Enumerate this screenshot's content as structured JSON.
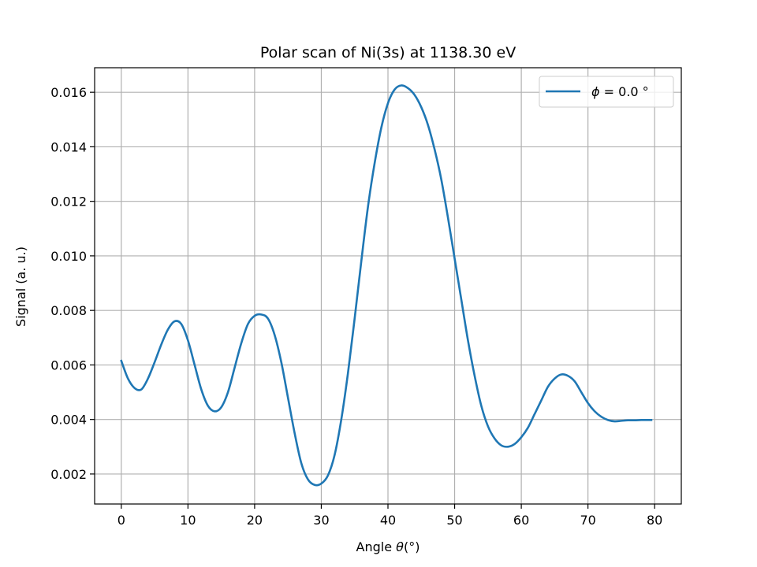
{
  "chart_data": {
    "type": "line",
    "title": "Polar scan of Ni(3s) at 1138.30 eV",
    "xlabel_prefix": "Angle ",
    "xlabel_symbol": "θ",
    "xlabel_suffix": "(°)",
    "ylabel": "Signal (a. u.)",
    "xlim": [
      -4,
      84
    ],
    "ylim": [
      0.0009,
      0.0169
    ],
    "xticks": [
      0,
      10,
      20,
      30,
      40,
      50,
      60,
      70,
      80
    ],
    "yticks": [
      0.002,
      0.004,
      0.006,
      0.008,
      0.01,
      0.012,
      0.014,
      0.016
    ],
    "xtick_labels": [
      "0",
      "10",
      "20",
      "30",
      "40",
      "50",
      "60",
      "70",
      "80"
    ],
    "ytick_labels": [
      "0.002",
      "0.004",
      "0.006",
      "0.008",
      "0.010",
      "0.012",
      "0.014",
      "0.016"
    ],
    "grid": true,
    "legend_position": "top-right",
    "series": [
      {
        "legend_symbol": "ϕ",
        "legend_text": " = 0.0 °",
        "color": "#1f77b4",
        "x": [
          0,
          1,
          2,
          3,
          4,
          5,
          6,
          7,
          8,
          9,
          10,
          11,
          12,
          13,
          14,
          15,
          16,
          17,
          18,
          19,
          20,
          21,
          22,
          23,
          24,
          25,
          26,
          27,
          28,
          29,
          30,
          31,
          32,
          33,
          34,
          35,
          36,
          37,
          38,
          39,
          40,
          41,
          42,
          43,
          44,
          45,
          46,
          47,
          48,
          49,
          50,
          51,
          52,
          53,
          54,
          55,
          56,
          57,
          58,
          59,
          60,
          61,
          62,
          63,
          64,
          65,
          66,
          67,
          68,
          69,
          70,
          71,
          72,
          73,
          74,
          75,
          76,
          77,
          78,
          79,
          79.5
        ],
        "y": [
          0.00615,
          0.0055,
          0.00515,
          0.0051,
          0.0055,
          0.0061,
          0.00675,
          0.0073,
          0.0076,
          0.0075,
          0.0069,
          0.006,
          0.0051,
          0.0045,
          0.0043,
          0.00445,
          0.005,
          0.0059,
          0.0068,
          0.0075,
          0.0078,
          0.00785,
          0.0077,
          0.0071,
          0.0061,
          0.0048,
          0.0035,
          0.0024,
          0.0018,
          0.0016,
          0.00165,
          0.00195,
          0.0027,
          0.004,
          0.0057,
          0.0077,
          0.0098,
          0.0118,
          0.0134,
          0.0147,
          0.0156,
          0.0161,
          0.01625,
          0.01615,
          0.0159,
          0.01545,
          0.0148,
          0.0139,
          0.0128,
          0.0114,
          0.0099,
          0.0084,
          0.0069,
          0.0056,
          0.0045,
          0.00375,
          0.0033,
          0.00305,
          0.003,
          0.0031,
          0.00335,
          0.0037,
          0.0042,
          0.0047,
          0.0052,
          0.0055,
          0.00565,
          0.0056,
          0.0054,
          0.005,
          0.0046,
          0.0043,
          0.0041,
          0.00398,
          0.00393,
          0.00395,
          0.00397,
          0.00397,
          0.00398,
          0.00398,
          0.00398
        ]
      }
    ]
  }
}
